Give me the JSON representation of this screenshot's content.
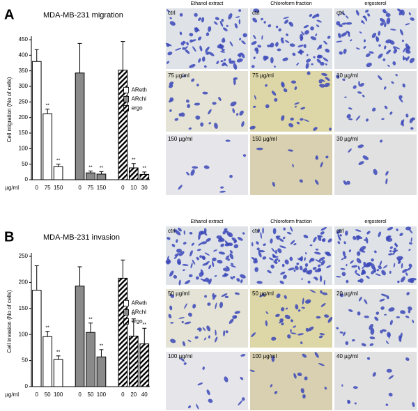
{
  "panel_labels": [
    "A",
    "B"
  ],
  "chart_data": [
    {
      "type": "bar",
      "title": "MDA-MB-231 migration",
      "ylabel": "Cell migration (No of cells)",
      "xlabel": "µg/ml",
      "ylim": [
        0,
        450
      ],
      "yticks": [
        0,
        50,
        100,
        150,
        200,
        250,
        300,
        350,
        400,
        450
      ],
      "legend": "right",
      "series": [
        {
          "name": "AReth",
          "color": "#ffffff",
          "pattern": "solid",
          "categories": [
            "0",
            "75",
            "150"
          ],
          "values": [
            380,
            212,
            42
          ],
          "errors": [
            38,
            15,
            8
          ],
          "annotations": [
            null,
            "**",
            "**"
          ]
        },
        {
          "name": "ARchl",
          "color": "#8a8a8a",
          "pattern": "solid",
          "categories": [
            "0",
            "75",
            "150"
          ],
          "values": [
            343,
            22,
            18
          ],
          "errors": [
            95,
            6,
            8
          ],
          "annotations": [
            null,
            "**",
            "**"
          ]
        },
        {
          "name": "ergo",
          "color": "#000000",
          "pattern": "hatch",
          "categories": [
            "0",
            "10",
            "30"
          ],
          "values": [
            352,
            38,
            17
          ],
          "errors": [
            92,
            14,
            8
          ],
          "annotations": [
            null,
            "**",
            "**"
          ]
        }
      ]
    },
    {
      "type": "bar",
      "title": "MDA-MB-231 invasion",
      "ylabel": "Cell invasion (No of cells)",
      "xlabel": "µg/ml",
      "ylim": [
        0,
        250
      ],
      "yticks": [
        0,
        50,
        100,
        150,
        200,
        250
      ],
      "legend": "right",
      "series": [
        {
          "name": "AReth",
          "color": "#ffffff",
          "pattern": "solid",
          "categories": [
            "0",
            "50",
            "100"
          ],
          "values": [
            185,
            96,
            52
          ],
          "errors": [
            47,
            10,
            7
          ],
          "annotations": [
            null,
            "**",
            "**"
          ]
        },
        {
          "name": "ARchl",
          "color": "#8a8a8a",
          "pattern": "solid",
          "categories": [
            "0",
            "50",
            "100"
          ],
          "values": [
            193,
            104,
            57
          ],
          "errors": [
            37,
            18,
            14
          ],
          "annotations": [
            null,
            "**",
            "**"
          ]
        },
        {
          "name": "ergo",
          "color": "#000000",
          "pattern": "hatch",
          "categories": [
            "0",
            "20",
            "40"
          ],
          "values": [
            208,
            97,
            82
          ],
          "errors": [
            35,
            33,
            30
          ],
          "annotations": [
            null,
            "**",
            "**"
          ]
        }
      ]
    }
  ],
  "micrographs": [
    {
      "columns": [
        "Ethanol extract",
        "Chloroform fraction",
        "ergosterol"
      ],
      "rows": [
        [
          "ctrl",
          "ctrl",
          "ctrl"
        ],
        [
          "75 µg/ml",
          "75 µg/ml",
          "10 µg/ml"
        ],
        [
          "150 µg/ml",
          "150 µg/ml",
          "30 µg/ml"
        ]
      ]
    },
    {
      "columns": [
        "Ethanol extract",
        "Chloroform fraction",
        "ergosterol"
      ],
      "rows": [
        [
          "ctrl",
          "ctrl",
          "ctrl"
        ],
        [
          "50 µg/ml",
          "50 µg/ml",
          "20 µg/ml"
        ],
        [
          "100 µg/ml",
          "100 µg/ml",
          "40 µg/ml"
        ]
      ]
    }
  ]
}
